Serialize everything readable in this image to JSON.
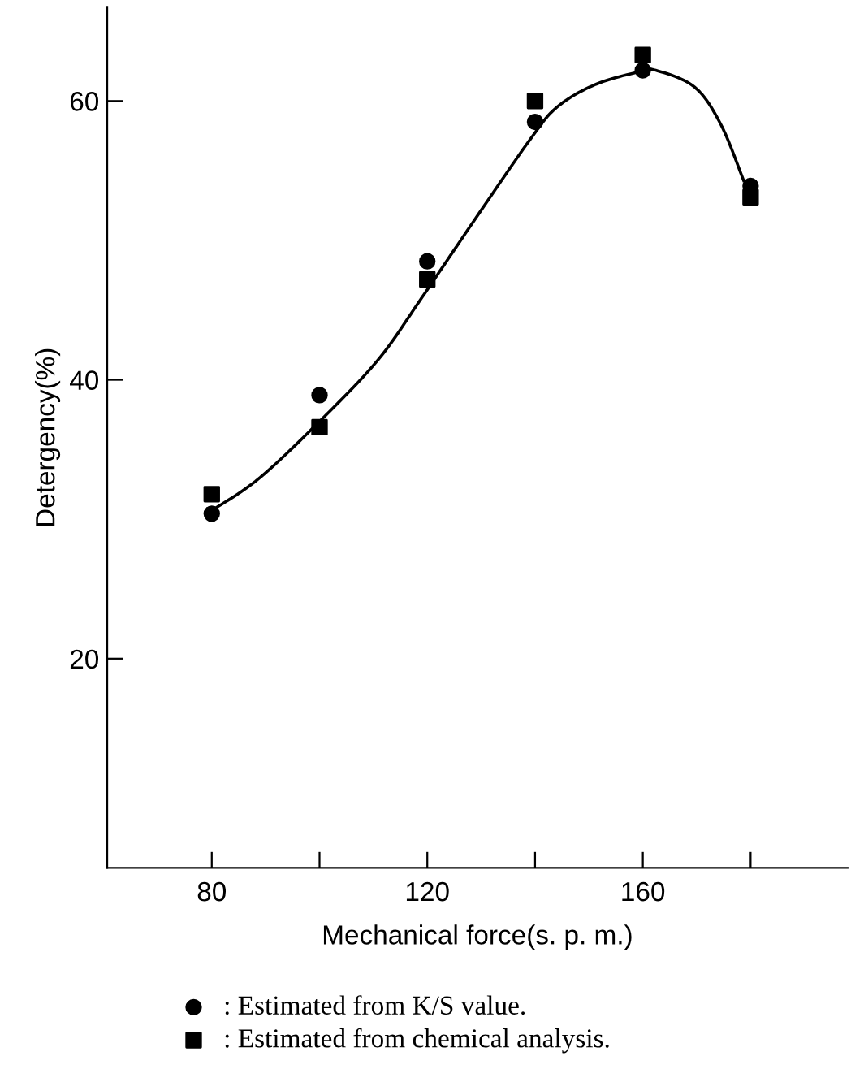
{
  "chart_data": {
    "type": "scatter",
    "xlabel": "Mechanical force(s. p. m.)",
    "ylabel": "Detergency(%)",
    "xlim": [
      60.6,
      198
    ],
    "ylim": [
      5,
      66.7
    ],
    "xticks": [
      80,
      {
        "value": 100,
        "label": null
      },
      120,
      {
        "value": 140,
        "label": null
      },
      160,
      {
        "value": 180,
        "label": null
      }
    ],
    "yticks": [
      20,
      40,
      60
    ],
    "legend": "bottom",
    "grid": false,
    "series": [
      {
        "name": ": Estimated from K/S value.",
        "color": "#000000",
        "marker": "circle",
        "x": [
          80,
          100,
          120,
          140,
          160,
          180
        ],
        "values": [
          30.4,
          38.9,
          48.5,
          58.5,
          62.2,
          53.9
        ]
      },
      {
        "name": ": Estimated from chemical analysis.",
        "color": "#000000",
        "marker": "square",
        "x": [
          80,
          100,
          120,
          140,
          160,
          180
        ],
        "values": [
          31.8,
          36.6,
          47.2,
          60,
          63.3,
          53.1
        ]
      },
      {
        "type": "line",
        "color": "#000000",
        "marker": "none",
        "x": [
          80.3,
          89,
          101,
          111,
          119,
          129,
          139.2,
          144.2,
          151.3,
          159.4,
          162.4,
          169.6,
          174.5,
          178.7
        ],
        "values": [
          30.7,
          33.0,
          37.4,
          41.5,
          45.9,
          51.6,
          57.3,
          59.6,
          61.2,
          62.1,
          62.2,
          61.0,
          58.3,
          54.3
        ]
      }
    ]
  }
}
